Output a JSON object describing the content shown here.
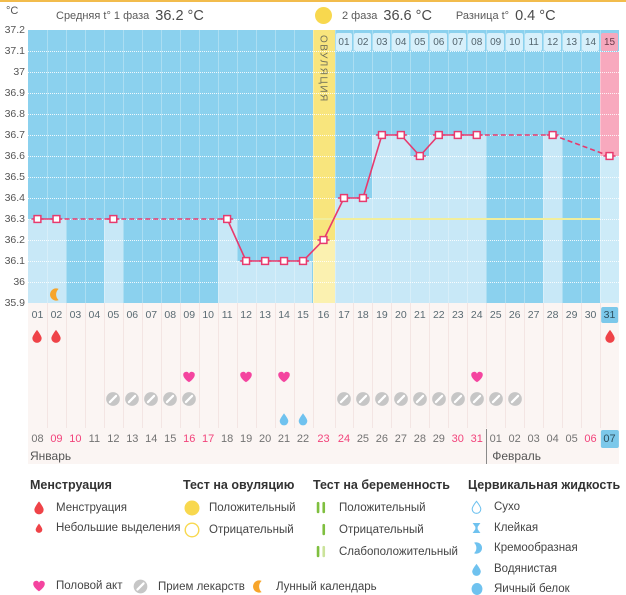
{
  "header": {
    "unit": "°C",
    "avg_phase1_label": "Средняя t° 1 фаза",
    "avg_phase1_value": "36.2 °C",
    "phase2_label": "2 фаза",
    "phase2_value": "36.6 °C",
    "diff_label": "Разница t°",
    "diff_value": "0.4 °C",
    "ovulation_label": "ОВУЛЯЦИЯ"
  },
  "chart_data": {
    "type": "line",
    "title": "Basal body temperature cycle chart",
    "ylabel": "°C",
    "ylim": [
      35.9,
      37.2
    ],
    "yticks": [
      "37.2",
      "37.1",
      "37",
      "36.9",
      "36.8",
      "36.7",
      "36.6",
      "36.5",
      "36.4",
      "36.3",
      "36.2",
      "36.1",
      "36",
      "35.9"
    ],
    "day_labels": [
      "01",
      "02",
      "03",
      "04",
      "05",
      "06",
      "07",
      "08",
      "09",
      "10",
      "11",
      "12",
      "13",
      "14",
      "15",
      "16",
      "17",
      "18",
      "19",
      "20",
      "21",
      "22",
      "23",
      "24",
      "25",
      "26",
      "27",
      "28",
      "29",
      "30",
      "31"
    ],
    "temps": [
      36.3,
      36.3,
      null,
      null,
      36.3,
      null,
      null,
      null,
      null,
      null,
      36.3,
      36.1,
      36.1,
      36.1,
      36.1,
      36.2,
      36.4,
      36.4,
      36.7,
      36.7,
      36.6,
      36.7,
      36.7,
      36.7,
      null,
      null,
      null,
      36.7,
      null,
      null,
      36.6
    ],
    "ovulation_day": 16,
    "current_day": 31,
    "coverline": 36.3,
    "phase2_start_day": 17,
    "phase2_labels": [
      "01",
      "02",
      "03",
      "04",
      "05",
      "06",
      "07",
      "08",
      "09",
      "10",
      "11",
      "12",
      "13",
      "14",
      "15"
    ],
    "line_color": "#E73A6E",
    "grid": "dotted-white"
  },
  "events": {
    "menstruation_days": [
      1,
      2,
      31
    ],
    "intercourse_days": [
      9,
      12,
      14,
      24
    ],
    "medication_days": [
      5,
      6,
      7,
      8,
      9,
      17,
      18,
      19,
      20,
      21,
      22,
      23,
      24,
      25,
      26
    ],
    "fluid_watery_days": [
      14,
      15
    ],
    "moon_day": 2
  },
  "calendar": {
    "dates": [
      {
        "d": "08"
      },
      {
        "d": "09",
        "red": true
      },
      {
        "d": "10",
        "red": true
      },
      {
        "d": "11"
      },
      {
        "d": "12"
      },
      {
        "d": "13"
      },
      {
        "d": "14"
      },
      {
        "d": "15"
      },
      {
        "d": "16",
        "red": true
      },
      {
        "d": "17",
        "red": true
      },
      {
        "d": "18"
      },
      {
        "d": "19"
      },
      {
        "d": "20"
      },
      {
        "d": "21"
      },
      {
        "d": "22"
      },
      {
        "d": "23",
        "red": true
      },
      {
        "d": "24",
        "red": true
      },
      {
        "d": "25"
      },
      {
        "d": "26"
      },
      {
        "d": "27"
      },
      {
        "d": "28"
      },
      {
        "d": "29"
      },
      {
        "d": "30",
        "red": true
      },
      {
        "d": "31",
        "red": true
      },
      {
        "d": "01"
      },
      {
        "d": "02"
      },
      {
        "d": "03"
      },
      {
        "d": "04"
      },
      {
        "d": "05"
      },
      {
        "d": "06",
        "red": true
      },
      {
        "d": "07",
        "hl": true
      }
    ],
    "months": [
      {
        "label": "Январь",
        "start_day": 1
      },
      {
        "label": "Февраль",
        "start_day": 25
      }
    ]
  },
  "colors": {
    "chart_bg": "#8BD1EE",
    "measured_bar": "#C8E8F7",
    "ovulation_band": "#F8E57D",
    "current_day_band": "#F8A9BE",
    "coverline": "#F1EE9C",
    "temp_line": "#E73A6E",
    "menstruation": "#EF4348",
    "intercourse": "#F4449F",
    "medication": "#C6C6C6",
    "fluid": "#6FC2EF",
    "moon": "#F7A52B",
    "ovulation_test": "#F8D84E",
    "pregnancy_test": "#7FBF3F",
    "weekend_date": "#F2437B",
    "highlight_box": "#7CC8EA"
  },
  "legend": {
    "sections": [
      {
        "title": "Менструация",
        "items": [
          {
            "icon": "drop-red-large-icon",
            "label": "Менструация"
          },
          {
            "icon": "drop-red-small-icon",
            "label": "Небольшие выделения"
          }
        ]
      },
      {
        "title": "Тест на овуляцию",
        "items": [
          {
            "icon": "circle-yellow-filled-icon",
            "label": "Положительный"
          },
          {
            "icon": "circle-yellow-outline-icon",
            "label": "Отрицательный"
          }
        ]
      },
      {
        "title": "Тест на беременность",
        "items": [
          {
            "icon": "test-two-bars-icon",
            "label": "Положительный"
          },
          {
            "icon": "test-one-bar-icon",
            "label": "Отрицательный"
          },
          {
            "icon": "test-weak-bars-icon",
            "label": "Слабоположительный"
          }
        ]
      },
      {
        "title": "Цервикальная жидкость",
        "items": [
          {
            "icon": "fluid-dry-icon",
            "label": "Сухо"
          },
          {
            "icon": "fluid-sticky-icon",
            "label": "Клейкая"
          },
          {
            "icon": "fluid-creamy-icon",
            "label": "Кремообразная"
          },
          {
            "icon": "fluid-watery-icon",
            "label": "Водянистая"
          },
          {
            "icon": "fluid-eggwhite-icon",
            "label": "Яичный белок"
          }
        ]
      }
    ],
    "footer_items": [
      {
        "icon": "heart-pink-icon",
        "label": "Половой акт"
      },
      {
        "icon": "pill-gray-icon",
        "label": "Прием лекарств"
      },
      {
        "icon": "moon-orange-icon",
        "label": "Лунный календарь"
      }
    ]
  }
}
